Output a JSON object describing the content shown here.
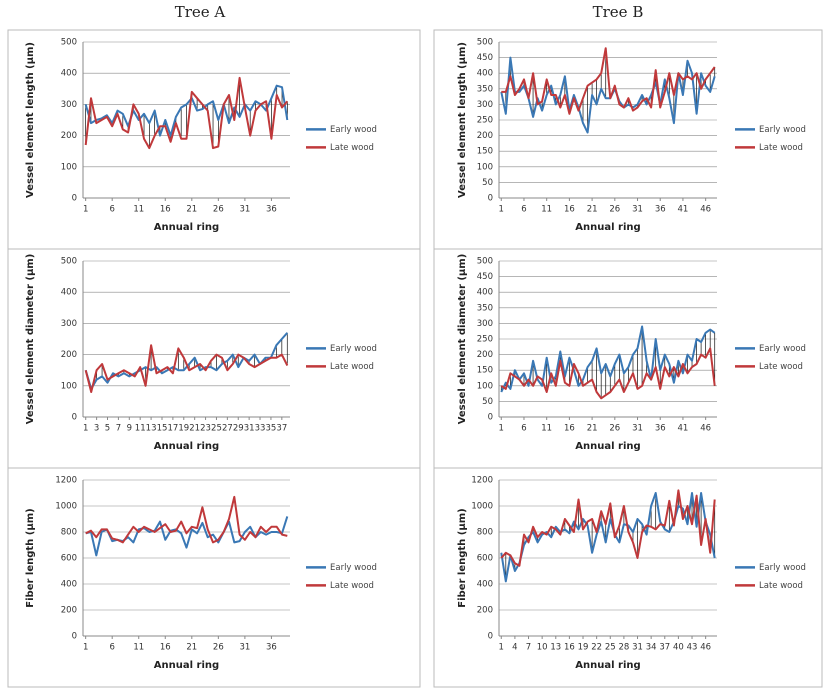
{
  "column_titles": [
    "Tree A",
    "Tree B"
  ],
  "chart_data": [
    {
      "type": "line",
      "y_label": "Vessel element length (μm)",
      "x_label": "Annual ring",
      "x": [
        1,
        2,
        3,
        4,
        5,
        6,
        7,
        8,
        9,
        10,
        11,
        12,
        13,
        14,
        15,
        16,
        17,
        18,
        19,
        20,
        21,
        22,
        23,
        24,
        25,
        26,
        27,
        28,
        29,
        30,
        31,
        32,
        33,
        34,
        35,
        36,
        37,
        38,
        39
      ],
      "xlim": [
        0.5,
        39.5
      ],
      "xticks": [
        1,
        6,
        11,
        16,
        21,
        26,
        31,
        36
      ],
      "ylim": [
        0,
        500
      ],
      "yticks": [
        0,
        100,
        200,
        300,
        400,
        500
      ],
      "grid": true,
      "legend": "right",
      "hilo_lines": true,
      "series": [
        {
          "name": "Early wood",
          "color": "#3a78b5",
          "values": [
            300,
            240,
            250,
            255,
            265,
            240,
            280,
            270,
            230,
            280,
            250,
            270,
            240,
            280,
            200,
            250,
            200,
            260,
            290,
            300,
            320,
            280,
            285,
            300,
            310,
            250,
            300,
            240,
            290,
            260,
            300,
            280,
            310,
            300,
            280,
            320,
            360,
            355,
            250
          ]
        },
        {
          "name": "Late wood",
          "color": "#c0393b",
          "values": [
            170,
            320,
            240,
            250,
            260,
            230,
            270,
            220,
            210,
            300,
            270,
            190,
            160,
            200,
            230,
            230,
            180,
            240,
            190,
            190,
            340,
            320,
            300,
            280,
            160,
            165,
            300,
            330,
            250,
            385,
            290,
            200,
            280,
            300,
            310,
            190,
            330,
            290,
            310
          ]
        }
      ]
    },
    {
      "type": "line",
      "y_label": "Vessel element length (μm)",
      "x_label": "Annual ring",
      "x": [
        1,
        2,
        3,
        4,
        5,
        6,
        7,
        8,
        9,
        10,
        11,
        12,
        13,
        14,
        15,
        16,
        17,
        18,
        19,
        20,
        21,
        22,
        23,
        24,
        25,
        26,
        27,
        28,
        29,
        30,
        31,
        32,
        33,
        34,
        35,
        36,
        37,
        38,
        39,
        40,
        41,
        42,
        43,
        44,
        45,
        46,
        47,
        48
      ],
      "xlim": [
        0.5,
        48.5
      ],
      "xticks": [
        1,
        6,
        11,
        16,
        21,
        26,
        31,
        36,
        41,
        46
      ],
      "ylim": [
        0,
        500
      ],
      "yticks": [
        0,
        50,
        100,
        150,
        200,
        250,
        300,
        350,
        400,
        450,
        500
      ],
      "grid": true,
      "legend": "right",
      "hilo_lines": true,
      "series": [
        {
          "name": "Early wood",
          "color": "#3a78b5",
          "values": [
            340,
            270,
            450,
            340,
            340,
            360,
            320,
            260,
            320,
            280,
            330,
            360,
            300,
            330,
            390,
            280,
            330,
            290,
            240,
            210,
            330,
            300,
            350,
            320,
            320,
            350,
            310,
            290,
            300,
            290,
            300,
            330,
            300,
            330,
            370,
            300,
            380,
            320,
            240,
            400,
            330,
            440,
            400,
            270,
            400,
            360,
            340,
            390
          ]
        },
        {
          "name": "Late wood",
          "color": "#c0393b",
          "values": [
            340,
            340,
            390,
            330,
            350,
            380,
            320,
            400,
            300,
            310,
            380,
            330,
            330,
            290,
            330,
            270,
            320,
            280,
            320,
            360,
            370,
            380,
            400,
            480,
            320,
            360,
            300,
            290,
            320,
            280,
            290,
            310,
            320,
            290,
            410,
            290,
            340,
            400,
            330,
            400,
            380,
            390,
            380,
            400,
            350,
            380,
            400,
            420
          ]
        }
      ]
    },
    {
      "type": "line",
      "y_label": "Vessel element diameter (μm)",
      "x_label": "Annual ring",
      "x": [
        1,
        2,
        3,
        4,
        5,
        6,
        7,
        8,
        9,
        10,
        11,
        12,
        13,
        14,
        15,
        16,
        17,
        18,
        19,
        20,
        21,
        22,
        23,
        24,
        25,
        26,
        27,
        28,
        29,
        30,
        31,
        32,
        33,
        34,
        35,
        36,
        37,
        38
      ],
      "xlim": [
        0.5,
        38.5
      ],
      "xticks": [
        1,
        3,
        5,
        7,
        9,
        11,
        13,
        15,
        17,
        19,
        21,
        23,
        25,
        27,
        29,
        31,
        33,
        35,
        37
      ],
      "ylim": [
        0,
        500
      ],
      "yticks": [
        0,
        100,
        200,
        300,
        400,
        500
      ],
      "grid": true,
      "legend": "right",
      "hilo_lines": true,
      "series": [
        {
          "name": "Early wood",
          "color": "#3a78b5",
          "values": [
            150,
            90,
            120,
            130,
            110,
            140,
            130,
            140,
            130,
            140,
            150,
            160,
            150,
            160,
            140,
            150,
            160,
            150,
            150,
            170,
            190,
            150,
            160,
            160,
            150,
            170,
            180,
            200,
            160,
            190,
            180,
            200,
            170,
            190,
            190,
            230,
            250,
            270
          ]
        },
        {
          "name": "Late wood",
          "color": "#c0393b",
          "values": [
            150,
            80,
            150,
            170,
            120,
            130,
            140,
            150,
            140,
            130,
            160,
            100,
            230,
            140,
            150,
            160,
            140,
            220,
            190,
            150,
            160,
            170,
            150,
            180,
            200,
            190,
            150,
            170,
            200,
            190,
            170,
            160,
            170,
            180,
            190,
            190,
            200,
            165
          ]
        }
      ]
    },
    {
      "type": "line",
      "y_label": "Vessel element diameter (μm)",
      "x_label": "Annual ring",
      "x": [
        1,
        2,
        3,
        4,
        5,
        6,
        7,
        8,
        9,
        10,
        11,
        12,
        13,
        14,
        15,
        16,
        17,
        18,
        19,
        20,
        21,
        22,
        23,
        24,
        25,
        26,
        27,
        28,
        29,
        30,
        31,
        32,
        33,
        34,
        35,
        36,
        37,
        38,
        39,
        40,
        41,
        42,
        43,
        44,
        45,
        46,
        47,
        48
      ],
      "xlim": [
        0.5,
        48.5
      ],
      "xticks": [
        1,
        6,
        11,
        16,
        21,
        26,
        31,
        36,
        41,
        46
      ],
      "ylim": [
        0,
        500
      ],
      "yticks": [
        0,
        50,
        100,
        150,
        200,
        250,
        300,
        350,
        400,
        450,
        500
      ],
      "grid": true,
      "legend": "right",
      "hilo_lines": true,
      "series": [
        {
          "name": "Early wood",
          "color": "#3a78b5",
          "values": [
            80,
            110,
            90,
            150,
            120,
            140,
            100,
            180,
            120,
            100,
            190,
            110,
            130,
            210,
            130,
            190,
            150,
            100,
            120,
            160,
            180,
            220,
            140,
            170,
            130,
            170,
            200,
            140,
            160,
            200,
            220,
            290,
            180,
            120,
            250,
            150,
            200,
            170,
            110,
            180,
            140,
            200,
            180,
            250,
            240,
            270,
            280,
            270
          ]
        },
        {
          "name": "Late wood",
          "color": "#c0393b",
          "values": [
            100,
            90,
            140,
            130,
            120,
            100,
            120,
            100,
            130,
            120,
            80,
            140,
            100,
            180,
            110,
            100,
            170,
            140,
            100,
            110,
            120,
            80,
            60,
            70,
            80,
            100,
            120,
            80,
            110,
            140,
            90,
            100,
            140,
            120,
            160,
            90,
            160,
            130,
            160,
            130,
            170,
            140,
            160,
            170,
            200,
            190,
            220,
            100
          ]
        }
      ]
    },
    {
      "type": "line",
      "y_label": "Fiber length (μm)",
      "x_label": "Annual ring",
      "x": [
        1,
        2,
        3,
        4,
        5,
        6,
        7,
        8,
        9,
        10,
        11,
        12,
        13,
        14,
        15,
        16,
        17,
        18,
        19,
        20,
        21,
        22,
        23,
        24,
        25,
        26,
        27,
        28,
        29,
        30,
        31,
        32,
        33,
        34,
        35,
        36,
        37,
        38,
        39
      ],
      "xlim": [
        0.5,
        39.5
      ],
      "xticks": [
        1,
        6,
        11,
        16,
        21,
        26,
        31,
        36
      ],
      "ylim": [
        0,
        1200
      ],
      "yticks": [
        0,
        200,
        400,
        600,
        800,
        1000,
        1200
      ],
      "grid": true,
      "legend": "right",
      "hilo_lines": false,
      "series": [
        {
          "name": "Early wood",
          "color": "#3a78b5",
          "values": [
            790,
            800,
            620,
            800,
            820,
            730,
            740,
            730,
            760,
            720,
            820,
            830,
            800,
            810,
            880,
            740,
            810,
            820,
            790,
            680,
            820,
            790,
            870,
            760,
            780,
            720,
            800,
            880,
            720,
            730,
            800,
            840,
            760,
            800,
            780,
            800,
            800,
            790,
            920
          ]
        },
        {
          "name": "Late wood",
          "color": "#c0393b",
          "values": [
            790,
            810,
            760,
            820,
            820,
            750,
            740,
            720,
            780,
            840,
            800,
            840,
            820,
            800,
            830,
            860,
            800,
            810,
            880,
            790,
            840,
            830,
            990,
            820,
            720,
            740,
            800,
            900,
            1070,
            780,
            740,
            800,
            760,
            840,
            800,
            840,
            840,
            780,
            770
          ]
        }
      ]
    },
    {
      "type": "line",
      "y_label": "Fiber length (μm)",
      "x_label": "Annual ring",
      "x": [
        1,
        2,
        3,
        4,
        5,
        6,
        7,
        8,
        9,
        10,
        11,
        12,
        13,
        14,
        15,
        16,
        17,
        18,
        19,
        20,
        21,
        22,
        23,
        24,
        25,
        26,
        27,
        28,
        29,
        30,
        31,
        32,
        33,
        34,
        35,
        36,
        37,
        38,
        39,
        40,
        41,
        42,
        43,
        44,
        45,
        46,
        47,
        48
      ],
      "xlim": [
        0.5,
        48.5
      ],
      "xticks": [
        1,
        4,
        7,
        10,
        13,
        16,
        19,
        22,
        25,
        28,
        31,
        34,
        37,
        40,
        43,
        46
      ],
      "ylim": [
        0,
        1200
      ],
      "yticks": [
        0,
        200,
        400,
        600,
        800,
        1000,
        1200
      ],
      "grid": true,
      "legend": "right",
      "hilo_lines": true,
      "series": [
        {
          "name": "Early wood",
          "color": "#3a78b5",
          "values": [
            640,
            420,
            620,
            500,
            560,
            700,
            760,
            800,
            720,
            780,
            800,
            760,
            840,
            800,
            820,
            790,
            880,
            820,
            900,
            850,
            640,
            780,
            880,
            720,
            900,
            780,
            720,
            860,
            850,
            800,
            900,
            860,
            780,
            1000,
            1100,
            880,
            820,
            800,
            880,
            1000,
            980,
            860,
            1100,
            840,
            1100,
            880,
            780,
            600
          ]
        },
        {
          "name": "Late wood",
          "color": "#c0393b",
          "values": [
            600,
            640,
            620,
            560,
            540,
            780,
            720,
            840,
            760,
            800,
            780,
            840,
            820,
            780,
            900,
            850,
            800,
            1050,
            820,
            880,
            900,
            800,
            960,
            860,
            1020,
            760,
            850,
            1000,
            800,
            720,
            600,
            800,
            850,
            840,
            820,
            860,
            850,
            1040,
            850,
            1120,
            900,
            1000,
            860,
            1080,
            700,
            900,
            640,
            1050
          ]
        }
      ]
    }
  ]
}
